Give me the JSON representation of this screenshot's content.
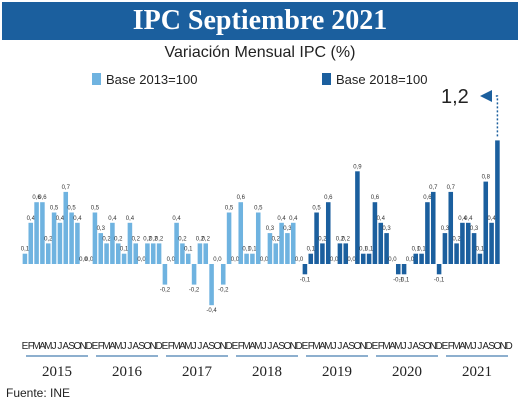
{
  "title": "IPC Septiembre 2021",
  "subtitle": "Variación Mensual IPC (%)",
  "source": "Fuente: INE",
  "annotation": "1,2",
  "colors": {
    "base2013": "#6fb3e0",
    "base2018": "#1b5f9e",
    "banner": "#1b5f9e"
  },
  "chart_data": {
    "type": "bar",
    "title": "Variación Mensual IPC (%)",
    "legend_position": "top",
    "series": [
      {
        "name": "Base 2013=100",
        "color": "#6fb3e0"
      },
      {
        "name": "Base 2018=100",
        "color": "#1b5f9e"
      }
    ],
    "month_labels": [
      "E",
      "F",
      "M",
      "A",
      "M",
      "J",
      "J",
      "A",
      "S",
      "O",
      "N",
      "D"
    ],
    "years": [
      "2015",
      "2016",
      "2017",
      "2018",
      "2019",
      "2020",
      "2021"
    ],
    "ylim": [
      -0.5,
      1.3
    ],
    "values": [
      0.1,
      0.4,
      0.6,
      0.6,
      0.2,
      0.5,
      0.4,
      0.7,
      0.5,
      0.4,
      0.0,
      0.0,
      0.5,
      0.3,
      0.2,
      0.4,
      0.2,
      0.1,
      0.4,
      0.2,
      0.0,
      0.2,
      0.2,
      0.2,
      -0.2,
      0.0,
      0.4,
      0.2,
      0.1,
      -0.2,
      0.2,
      0.2,
      -0.4,
      0.0,
      -0.2,
      0.5,
      0.0,
      0.6,
      0.1,
      0.1,
      0.5,
      0.0,
      0.3,
      0.2,
      0.4,
      0.3,
      0.4,
      0.0,
      -0.1,
      0.1,
      0.5,
      0.2,
      0.6,
      0.0,
      0.2,
      0.2,
      0.0,
      0.9,
      0.1,
      0.1,
      0.6,
      0.4,
      0.3,
      0.0,
      -0.1,
      -0.1,
      0.0,
      0.1,
      0.1,
      0.6,
      0.7,
      -0.1,
      0.3,
      0.7,
      0.2,
      0.4,
      0.4,
      0.3,
      0.1,
      0.8,
      0.4,
      1.2
    ],
    "value_labels": [
      "0,1",
      "0,4",
      "0,6",
      "0,6",
      "0,2",
      "0,5",
      "0,4",
      "0,7",
      "0,5",
      "0,4",
      "0,0",
      "0,0",
      "0,5",
      "0,3",
      "0,2",
      "0,4",
      "0,2",
      "0,1",
      "0,4",
      "0,2",
      "0,0",
      "0,2",
      "0,2",
      "0,2",
      "-0,2",
      "0,0",
      "0,4",
      "0,2",
      "0,1",
      "-0,2",
      "0,2",
      "0,2",
      "-0,4",
      "0,0",
      "-0,2",
      "0,5",
      "0,0",
      "0,6",
      "0,1",
      "0,1",
      "0,5",
      "0,0",
      "0,3",
      "0,2",
      "0,4",
      "0,3",
      "0,4",
      "0,0",
      "-0,1",
      "0,1",
      "0,5",
      "0,2",
      "0,6",
      "0,0",
      "0,2",
      "0,2",
      "0,0",
      "0,9",
      "0,1",
      "0,1",
      "0,6",
      "0,4",
      "0,3",
      "0,0",
      "-0,1",
      "-0,1",
      "0,0",
      "0,1",
      "0,1",
      "0,6",
      "0,7",
      "-0,1",
      "0,3",
      "0,7",
      "0,2",
      "0,4",
      "0,4",
      "0,3",
      "0,1",
      "0,8",
      "0,4",
      ""
    ],
    "series_change_index": 48
  }
}
